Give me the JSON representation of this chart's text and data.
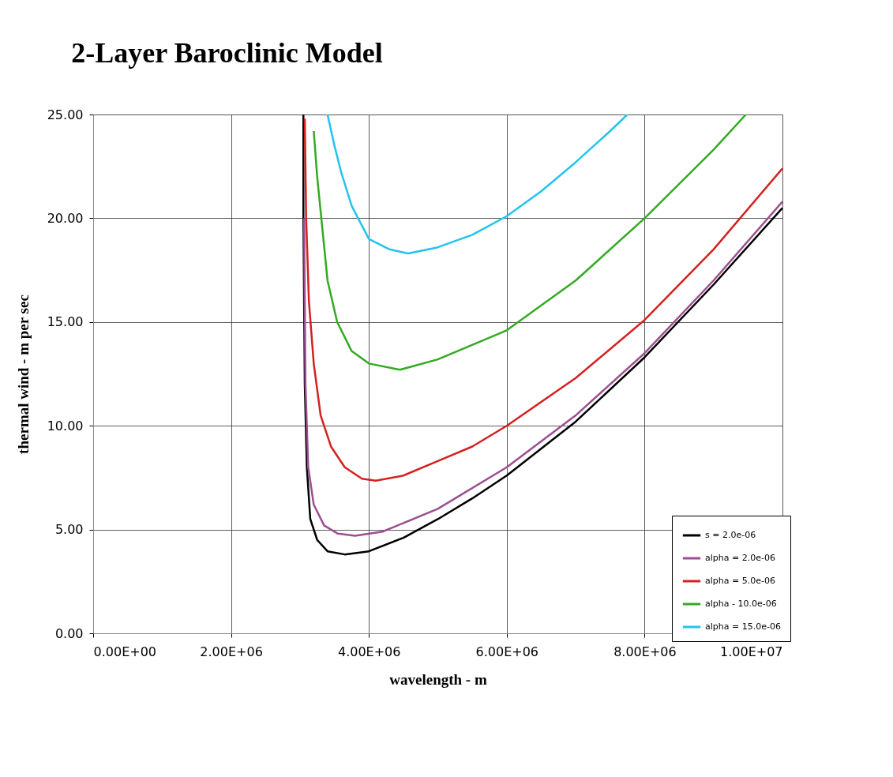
{
  "chart_data": {
    "type": "line",
    "title": "2-Layer Baroclinic Model",
    "xlabel": "wavelength - m",
    "ylabel": "thermal wind - m per sec",
    "xlim": [
      0,
      10000000
    ],
    "ylim": [
      0,
      25
    ],
    "xticks": [
      {
        "value": 0,
        "label": "0.00E+00"
      },
      {
        "value": 2000000,
        "label": "2.00E+06"
      },
      {
        "value": 4000000,
        "label": "4.00E+06"
      },
      {
        "value": 6000000,
        "label": "6.00E+06"
      },
      {
        "value": 8000000,
        "label": "8.00E+06"
      },
      {
        "value": 10000000,
        "label": "1.00E+07"
      }
    ],
    "yticks": [
      {
        "value": 0,
        "label": "0.00"
      },
      {
        "value": 5,
        "label": "5.00"
      },
      {
        "value": 10,
        "label": "10.00"
      },
      {
        "value": 15,
        "label": "15.00"
      },
      {
        "value": 20,
        "label": "20.00"
      },
      {
        "value": 25,
        "label": "25.00"
      }
    ],
    "grid": true,
    "legend": "bottom right",
    "marker": "none",
    "line_style": "solid",
    "series": [
      {
        "name": "s = 2.0e-06",
        "color": "#000000",
        "x": [
          3050000,
          3050000,
          3070000,
          3100000,
          3150000,
          3250000,
          3400000,
          3650000,
          4000000,
          4500000,
          5000000,
          5500000,
          6000000,
          7000000,
          8000000,
          9000000,
          10000000
        ],
        "values": [
          25,
          20,
          12,
          8,
          5.5,
          4.5,
          3.95,
          3.8,
          3.95,
          4.6,
          5.5,
          6.5,
          7.6,
          10.2,
          13.3,
          16.8,
          20.5
        ]
      },
      {
        "name": "alpha = 2.0e-06",
        "color": "#9b4f8f",
        "x": [
          3060000,
          3080000,
          3120000,
          3200000,
          3350000,
          3550000,
          3800000,
          4200000,
          5000000,
          6000000,
          7000000,
          8000000,
          9000000,
          10000000
        ],
        "values": [
          20,
          12,
          8,
          6.2,
          5.2,
          4.8,
          4.7,
          4.9,
          6,
          8,
          10.5,
          13.5,
          17,
          20.8
        ]
      },
      {
        "name": "alpha = 5.0e-06",
        "color": "#d42020",
        "x": [
          3070000,
          3090000,
          3130000,
          3200000,
          3300000,
          3450000,
          3650000,
          3900000,
          4100000,
          4500000,
          5000000,
          5500000,
          6000000,
          7000000,
          8000000,
          9000000,
          10000000
        ],
        "values": [
          24.8,
          20,
          16,
          13,
          10.5,
          9,
          8,
          7.45,
          7.35,
          7.6,
          8.3,
          9,
          10,
          12.3,
          15.1,
          18.5,
          22.4
        ]
      },
      {
        "name": "alpha - 10.0e-06",
        "color": "#33aa22",
        "x": [
          3200000,
          3250000,
          3310000,
          3400000,
          3540000,
          3750000,
          4000000,
          4450000,
          5000000,
          6000000,
          7000000,
          8000000,
          9000000,
          9470000
        ],
        "values": [
          24.2,
          22,
          20,
          17,
          15,
          13.6,
          13,
          12.7,
          13.2,
          14.6,
          17,
          20,
          23.3,
          25
        ]
      },
      {
        "name": "alpha = 15.0e-06",
        "color": "#22c4ee",
        "x": [
          3400000,
          3500000,
          3600000,
          3750000,
          4000000,
          4300000,
          4570000,
          5000000,
          5500000,
          6000000,
          6500000,
          7000000,
          7500000,
          7750000
        ],
        "values": [
          25,
          23.5,
          22.2,
          20.6,
          19,
          18.5,
          18.3,
          18.6,
          19.2,
          20.1,
          21.3,
          22.7,
          24.2,
          25
        ]
      }
    ]
  }
}
